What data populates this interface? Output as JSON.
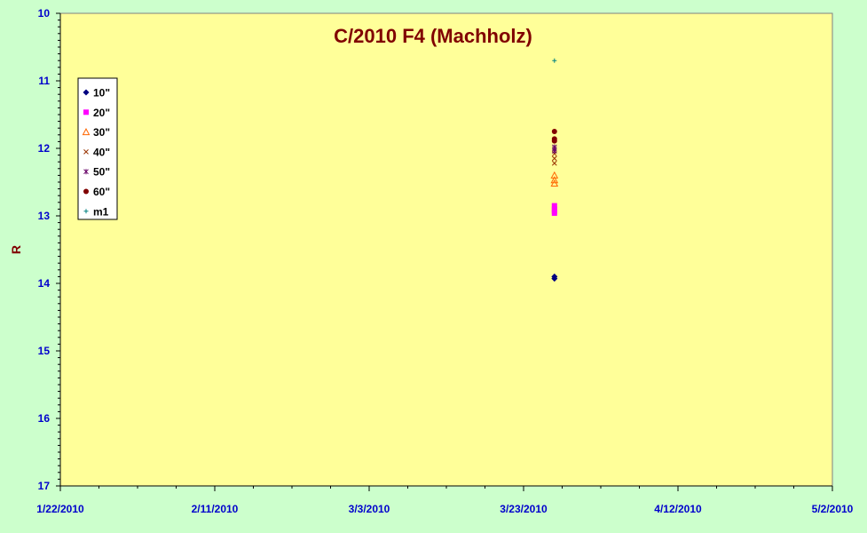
{
  "chart_data": {
    "type": "scatter",
    "title": "C/2010 F4 (Machholz)",
    "xlabel": "",
    "ylabel": "R",
    "xlim": [
      "1/22/2010",
      "5/2/2010"
    ],
    "ylim": [
      10,
      17
    ],
    "y_reversed": true,
    "x_tick_labels": [
      "1/22/2010",
      "2/11/2010",
      "3/3/2010",
      "3/23/2010",
      "4/12/2010",
      "5/2/2010"
    ],
    "y_tick_labels": [
      "10",
      "11",
      "12",
      "13",
      "14",
      "15",
      "16",
      "17"
    ],
    "grid": false,
    "legend_position": "top-left",
    "colors": {
      "page_background": "#CCFFCC",
      "plot_background": "#FFFF99",
      "title": "#800000",
      "tick_labels": "#0000CC"
    },
    "series": [
      {
        "name": "10\"",
        "marker": "diamond",
        "color": "#000080",
        "x": [
          "3/27/2010",
          "3/27/2010"
        ],
        "y": [
          13.9,
          13.93
        ]
      },
      {
        "name": "20\"",
        "marker": "square",
        "color": "#FF00FF",
        "x": [
          "3/27/2010",
          "3/27/2010",
          "3/27/2010",
          "3/27/2010"
        ],
        "y": [
          12.85,
          12.9,
          12.93,
          12.96
        ]
      },
      {
        "name": "30\"",
        "marker": "triangle",
        "color": "#FF6600",
        "x": [
          "3/27/2010",
          "3/27/2010",
          "3/27/2010"
        ],
        "y": [
          12.4,
          12.47,
          12.52
        ]
      },
      {
        "name": "40\"",
        "marker": "x",
        "color": "#993300",
        "x": [
          "3/27/2010",
          "3/27/2010",
          "3/27/2010"
        ],
        "y": [
          12.08,
          12.15,
          12.22
        ]
      },
      {
        "name": "50\"",
        "marker": "star",
        "color": "#660066",
        "x": [
          "3/27/2010",
          "3/27/2010",
          "3/27/2010"
        ],
        "y": [
          11.98,
          12.01,
          12.04
        ]
      },
      {
        "name": "60\"",
        "marker": "circle",
        "color": "#800000",
        "x": [
          "3/27/2010",
          "3/27/2010",
          "3/27/2010"
        ],
        "y": [
          11.75,
          11.86,
          11.89
        ]
      },
      {
        "name": "m1",
        "marker": "plus",
        "color": "#008080",
        "x": [
          "3/27/2010"
        ],
        "y": [
          10.7
        ]
      }
    ]
  }
}
